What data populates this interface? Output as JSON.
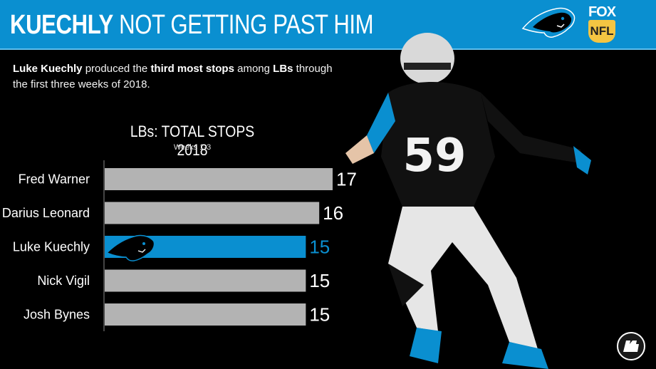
{
  "header": {
    "title_strong": "KUECHLY",
    "title_rest": "NOT GETTING PAST HIM",
    "broadcaster_top": "FOX",
    "broadcaster_bottom": "NFL",
    "colors": {
      "header_bg": "#0a8fd0",
      "accent": "#0a8fd0"
    }
  },
  "subtitle": {
    "part1": "Luke Kuechly",
    "part2": " produced the ",
    "part3": "third most stops",
    "part4": " among ",
    "part5": "LBs",
    "part6": " through the first three weeks of 2018."
  },
  "chart_data": {
    "type": "bar",
    "orientation": "horizontal",
    "title": "LBs: TOTAL STOPS 2018",
    "subtitle": "Weeks 1-3",
    "categories": [
      "Fred Warner",
      "Darius Leonard",
      "Luke Kuechly",
      "Nick Vigil",
      "Josh Bynes"
    ],
    "values": [
      17,
      16,
      15,
      15,
      15
    ],
    "highlight": "Luke Kuechly",
    "colors": {
      "bar": "#b3b3b3",
      "highlight": "#0a8fd0",
      "label": "#ffffff",
      "highlight_label": "#0a8fd0"
    },
    "xlim": [
      0,
      17
    ],
    "grid": false,
    "legend": "none"
  },
  "icons": {
    "team_logo": "panther-icon",
    "pff_logo": "pff-logo-icon"
  }
}
